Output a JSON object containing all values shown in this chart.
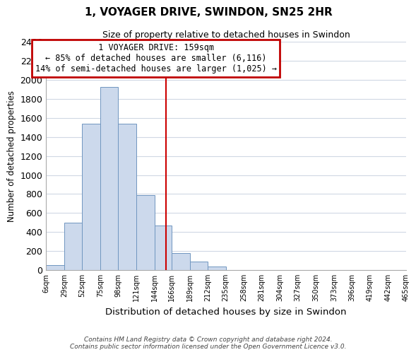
{
  "title": "1, VOYAGER DRIVE, SWINDON, SN25 2HR",
  "subtitle": "Size of property relative to detached houses in Swindon",
  "xlabel": "Distribution of detached houses by size in Swindon",
  "ylabel": "Number of detached properties",
  "bar_edges": [
    6,
    29,
    52,
    75,
    98,
    121,
    144,
    166,
    189,
    212,
    235,
    258,
    281,
    304,
    327,
    350,
    373,
    396,
    419,
    442,
    465
  ],
  "bar_heights": [
    55,
    500,
    1540,
    1930,
    1540,
    790,
    465,
    175,
    90,
    35,
    0,
    0,
    0,
    0,
    0,
    0,
    0,
    0,
    0,
    0
  ],
  "bar_color": "#ccd9ec",
  "bar_edge_color": "#7096c0",
  "property_line_x": 159,
  "ylim": [
    0,
    2400
  ],
  "yticks": [
    0,
    200,
    400,
    600,
    800,
    1000,
    1200,
    1400,
    1600,
    1800,
    2000,
    2200,
    2400
  ],
  "annotation_line1": "  1 VOYAGER DRIVE: 159sqm  ",
  "annotation_line2": "← 85% of detached houses are smaller (6,116)",
  "annotation_line3": "14% of semi-detached houses are larger (1,025) →",
  "footnote1": "Contains HM Land Registry data © Crown copyright and database right 2024.",
  "footnote2": "Contains public sector information licensed under the Open Government Licence v3.0.",
  "tick_labels": [
    "6sqm",
    "29sqm",
    "52sqm",
    "75sqm",
    "98sqm",
    "121sqm",
    "144sqm",
    "166sqm",
    "189sqm",
    "212sqm",
    "235sqm",
    "258sqm",
    "281sqm",
    "304sqm",
    "327sqm",
    "350sqm",
    "373sqm",
    "396sqm",
    "419sqm",
    "442sqm",
    "465sqm"
  ],
  "grid_color": "#d0d8e4",
  "background_color": "#ffffff",
  "ann_box_color": "#c00000"
}
